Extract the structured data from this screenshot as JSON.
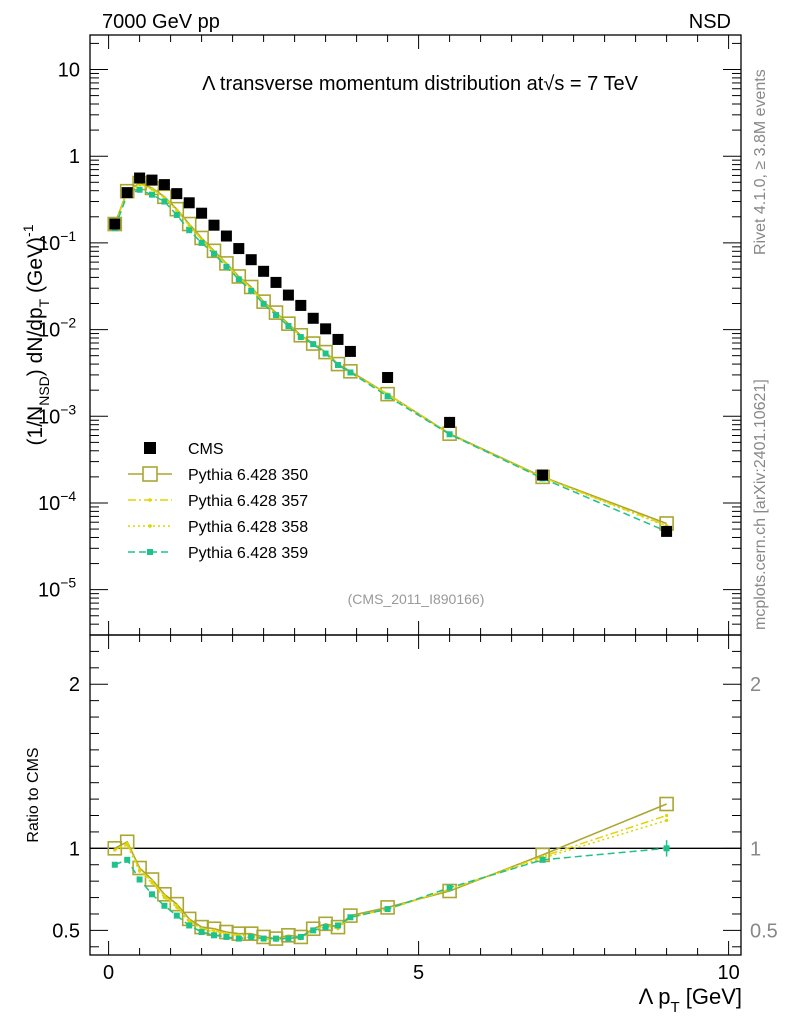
{
  "header": {
    "left": "7000 GeV pp",
    "right": "NSD"
  },
  "side_labels": {
    "rivet": "Rivet 4.1.0, ≥ 3.8M events",
    "mcplots": "mcplots.cern.ch [arXiv:2401.10621]"
  },
  "chart_data": {
    "type": "scatter",
    "title": "Λ transverse momentum distribution at√s = 7 TeV",
    "watermark": "(CMS_2011_I890166)",
    "xlabel": "Λ p_T [GeV]",
    "ylabel": "(1/N_NSD) dN/dp_T (GeV)^-1",
    "ratio_ylabel": "Ratio to CMS",
    "xlim": [
      -0.3,
      10.2
    ],
    "ylim_log": [
      3e-06,
      25
    ],
    "ratio_ylim": [
      0.35,
      2.3
    ],
    "x_ticks": [
      0,
      5,
      10
    ],
    "y_ticks": [
      {
        "value": 10,
        "base": "10",
        "exp": ""
      },
      {
        "value": 1,
        "base": "1",
        "exp": ""
      },
      {
        "value": 0.1,
        "base": "10",
        "exp": "−1"
      },
      {
        "value": 0.01,
        "base": "10",
        "exp": "−2"
      },
      {
        "value": 0.001,
        "base": "10",
        "exp": "−3"
      },
      {
        "value": 0.0001,
        "base": "10",
        "exp": "−4"
      },
      {
        "value": 1e-05,
        "base": "10",
        "exp": "−5"
      }
    ],
    "ratio_ticks": [
      0.5,
      1,
      2
    ],
    "x": [
      0.1,
      0.3,
      0.5,
      0.7,
      0.9,
      1.1,
      1.3,
      1.5,
      1.7,
      1.9,
      2.1,
      2.3,
      2.5,
      2.7,
      2.9,
      3.1,
      3.3,
      3.5,
      3.7,
      3.9,
      4.5,
      5.5,
      7.0,
      9.0
    ],
    "series": [
      {
        "name": "CMS",
        "style": "data",
        "color": "#000000",
        "values": [
          0.165,
          0.38,
          0.56,
          0.53,
          0.47,
          0.37,
          0.29,
          0.22,
          0.16,
          0.12,
          0.086,
          0.064,
          0.047,
          0.035,
          0.025,
          0.019,
          0.0135,
          0.0102,
          0.0077,
          0.0056,
          0.0028,
          0.00085,
          0.00021,
          4.7e-05
        ],
        "ratio": [
          1,
          1,
          1,
          1,
          1,
          1,
          1,
          1,
          1,
          1,
          1,
          1,
          1,
          1,
          1,
          1,
          1,
          1,
          1,
          1,
          1,
          1,
          1,
          1
        ]
      },
      {
        "name": "Pythia 6.428 350",
        "style": "solid",
        "color": "#aaa632",
        "values": [
          0.165,
          0.395,
          0.49,
          0.43,
          0.34,
          0.245,
          0.165,
          0.114,
          0.081,
          0.058,
          0.041,
          0.031,
          0.021,
          0.0157,
          0.0117,
          0.0086,
          0.0069,
          0.0055,
          0.004,
          0.0033,
          0.0018,
          0.00063,
          0.0002,
          5.8e-05
        ],
        "ratio": [
          1.0,
          1.04,
          0.88,
          0.81,
          0.72,
          0.66,
          0.57,
          0.52,
          0.51,
          0.49,
          0.48,
          0.48,
          0.46,
          0.45,
          0.47,
          0.46,
          0.51,
          0.54,
          0.52,
          0.59,
          0.64,
          0.74,
          0.96,
          1.27
        ]
      },
      {
        "name": "Pythia 6.428 357",
        "style": "dashdot",
        "color": "#e8d200",
        "values": [
          0.16,
          0.39,
          0.48,
          0.42,
          0.335,
          0.24,
          0.16,
          0.11,
          0.079,
          0.057,
          0.04,
          0.03,
          0.0205,
          0.0153,
          0.0114,
          0.0084,
          0.0068,
          0.0054,
          0.0039,
          0.0032,
          0.0018,
          0.00062,
          0.000198,
          5.5e-05
        ],
        "ratio": [
          0.99,
          1.03,
          0.87,
          0.8,
          0.71,
          0.65,
          0.56,
          0.51,
          0.5,
          0.48,
          0.47,
          0.47,
          0.45,
          0.44,
          0.46,
          0.45,
          0.5,
          0.53,
          0.52,
          0.58,
          0.63,
          0.75,
          0.95,
          1.2
        ]
      },
      {
        "name": "Pythia 6.428 358",
        "style": "dotted",
        "color": "#d6d600",
        "values": [
          0.16,
          0.385,
          0.47,
          0.415,
          0.33,
          0.235,
          0.158,
          0.109,
          0.078,
          0.056,
          0.04,
          0.0298,
          0.0202,
          0.015,
          0.0112,
          0.0083,
          0.0067,
          0.0053,
          0.0039,
          0.0032,
          0.0018,
          0.00062,
          0.000196,
          5.4e-05
        ],
        "ratio": [
          0.99,
          1.02,
          0.86,
          0.79,
          0.7,
          0.64,
          0.55,
          0.51,
          0.49,
          0.48,
          0.47,
          0.46,
          0.45,
          0.44,
          0.46,
          0.45,
          0.5,
          0.53,
          0.51,
          0.58,
          0.63,
          0.75,
          0.94,
          1.17
        ]
      },
      {
        "name": "Pythia 6.428 359",
        "style": "dashed",
        "color": "#1ec38c",
        "values": [
          0.148,
          0.36,
          0.41,
          0.36,
          0.3,
          0.21,
          0.14,
          0.1,
          0.075,
          0.053,
          0.038,
          0.028,
          0.0198,
          0.0147,
          0.011,
          0.0082,
          0.0068,
          0.0053,
          0.0039,
          0.0032,
          0.0017,
          0.00062,
          0.000192,
          4.7e-05
        ],
        "ratio": [
          0.9,
          0.93,
          0.81,
          0.72,
          0.65,
          0.59,
          0.53,
          0.49,
          0.47,
          0.46,
          0.45,
          0.46,
          0.45,
          0.45,
          0.45,
          0.46,
          0.5,
          0.52,
          0.53,
          0.58,
          0.63,
          0.76,
          0.93,
          1.0
        ]
      }
    ]
  }
}
